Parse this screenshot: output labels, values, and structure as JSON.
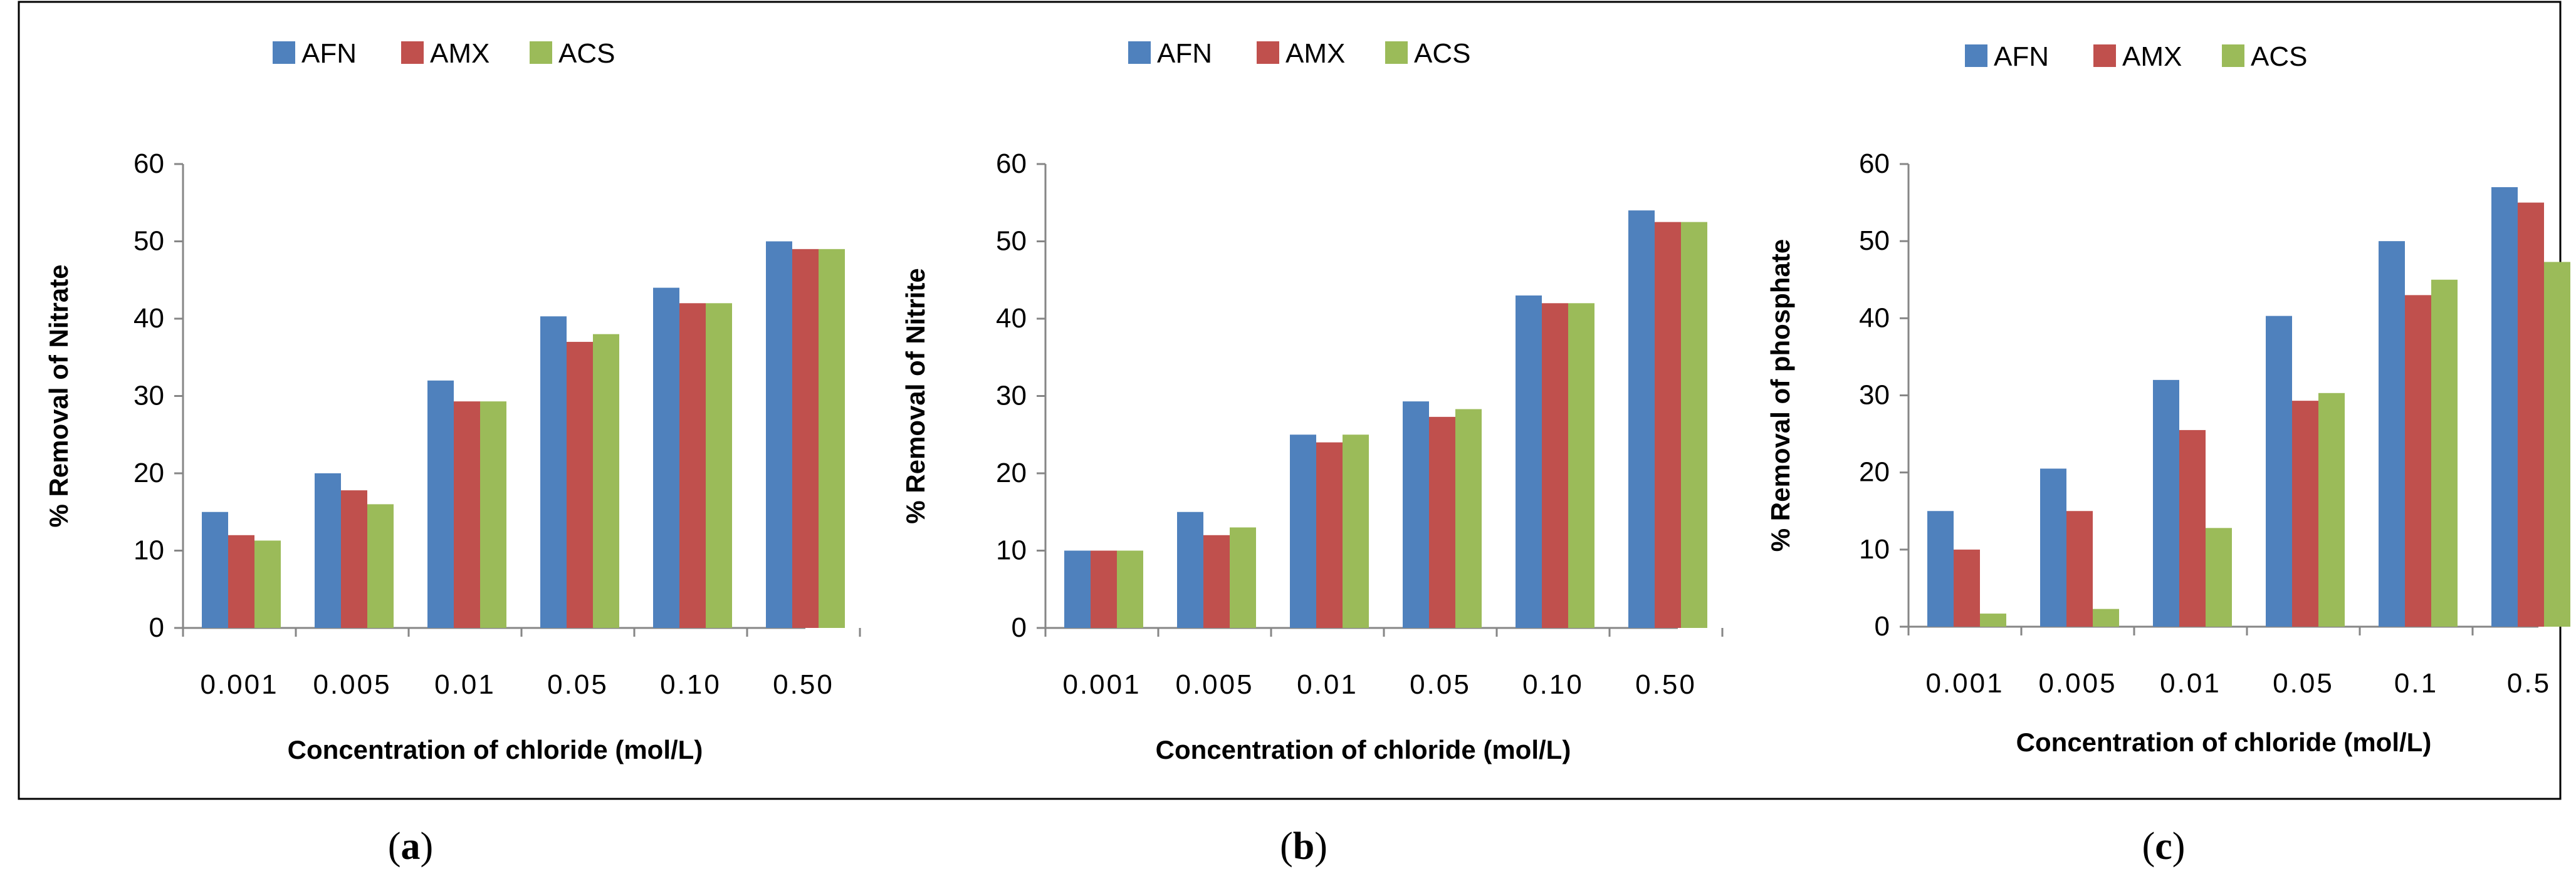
{
  "figure": {
    "captions": [
      "(a)",
      "(b)",
      "(c)"
    ],
    "caption_letters": [
      "a",
      "b",
      "c"
    ]
  },
  "colors": {
    "AFN": "#4F81BD",
    "AMX": "#C0504D",
    "ACS": "#9BBB59"
  },
  "chart_data": [
    {
      "type": "bar",
      "panel": "a",
      "title": "",
      "xlabel": "Concentration of chloride  (mol/L)",
      "ylabel": "% Removal of Nitrate",
      "ylim": [
        0,
        60
      ],
      "yticks": [
        0,
        10,
        20,
        30,
        40,
        50,
        60
      ],
      "grid": false,
      "legend_position": "top-left",
      "categories": [
        "0.001",
        "0.005",
        "0.01",
        "0.05",
        "0.10",
        "0.50"
      ],
      "series": [
        {
          "name": "AFN",
          "values": [
            15,
            20,
            32,
            40.3,
            44,
            50
          ]
        },
        {
          "name": "AMX",
          "values": [
            12,
            17.8,
            29.3,
            37,
            42,
            49
          ]
        },
        {
          "name": "ACS",
          "values": [
            11.3,
            16,
            29.3,
            38,
            42,
            49
          ]
        }
      ]
    },
    {
      "type": "bar",
      "panel": "b",
      "title": "",
      "xlabel": "Concentration of chloride  (mol/L)",
      "ylabel": "% Removal of Nitrite",
      "ylim": [
        0,
        60
      ],
      "yticks": [
        0,
        10,
        20,
        30,
        40,
        50,
        60
      ],
      "grid": false,
      "legend_position": "top-center",
      "categories": [
        "0.001",
        "0.005",
        "0.01",
        "0.05",
        "0.10",
        "0.50"
      ],
      "series": [
        {
          "name": "AFN",
          "values": [
            10,
            15,
            25,
            29.3,
            43,
            54
          ]
        },
        {
          "name": "AMX",
          "values": [
            10,
            12,
            24,
            27.3,
            42,
            52.5
          ]
        },
        {
          "name": "ACS",
          "values": [
            10,
            13,
            25,
            28.3,
            42,
            52.5
          ]
        }
      ]
    },
    {
      "type": "bar",
      "panel": "c",
      "title": "",
      "xlabel": "Concentration of chloride  (mol/L)",
      "ylabel": "% Removal of phosphate",
      "ylim": [
        0,
        60
      ],
      "yticks": [
        0,
        10,
        20,
        30,
        40,
        50,
        60
      ],
      "grid": false,
      "legend_position": "top-center",
      "categories": [
        "0.001",
        "0.005",
        "0.01",
        "0.05",
        "0.1",
        "0.5"
      ],
      "series": [
        {
          "name": "AFN",
          "values": [
            15,
            20.5,
            32,
            40.3,
            50,
            57
          ]
        },
        {
          "name": "AMX",
          "values": [
            10,
            15,
            25.5,
            29.3,
            43,
            55
          ]
        },
        {
          "name": "ACS",
          "values": [
            1.7,
            2.3,
            12.8,
            30.3,
            45,
            47.3
          ]
        }
      ]
    }
  ]
}
